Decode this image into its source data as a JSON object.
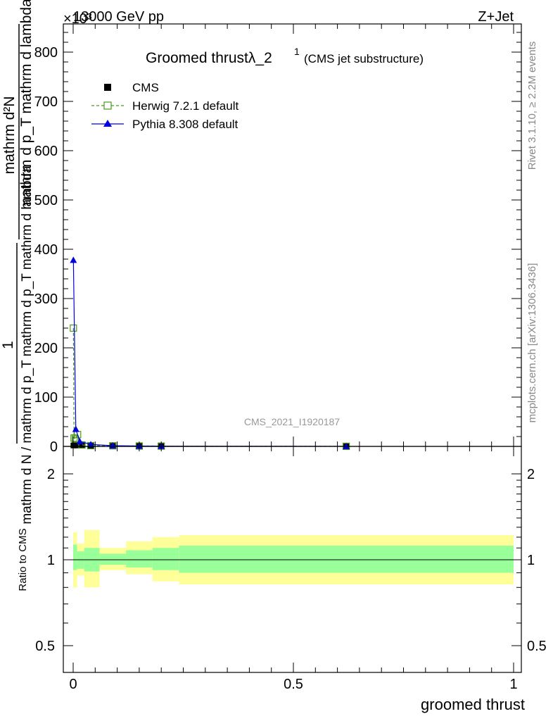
{
  "header": {
    "energy_label": "13000 GeV pp",
    "process_label": "Z+Jet",
    "exponent_label": "×10³"
  },
  "side_labels": {
    "rivet": "Rivet 3.1.10, ≥ 2.2M events",
    "mcplots": "mcplots.cern.ch [arXiv:1306.3436]"
  },
  "chart_data": [
    {
      "type": "line",
      "title": "Groomed thrustλ_2¹",
      "title_main": "Groomed thrustλ_2",
      "title_sup": "1",
      "subtitle": "(CMS jet substructure)",
      "ylabel_numerator": "mathrm d²N",
      "ylabel_fraction_num": "1",
      "ylabel_fraction_den": "mathrm d N / mathrm d p_T mathrm d p_T mathrm d lambda",
      "ylabel_lines": [
        "mathrm d²N",
        "mathrm d p_T mathrm d lambda",
        "mathrm d N / mathrm d p_T",
        "mathrm d p_T mathrm d lambda"
      ],
      "y_multiplier": "×10³",
      "watermark": "CMS_2021_I1920187",
      "xlim": [
        0,
        1
      ],
      "ylim": [
        0,
        860
      ],
      "yticks": [
        0,
        100,
        200,
        300,
        400,
        500,
        600,
        700,
        800
      ],
      "ytick_labels": [
        "0",
        "100",
        "200",
        "300",
        "400",
        "500",
        "600",
        "700",
        "800"
      ],
      "legend_position": "top-left",
      "grid": false,
      "series": [
        {
          "name": "CMS",
          "color": "#000000",
          "marker": "filled-square",
          "x": [
            0.0005,
            0.002,
            0.005,
            0.01,
            0.02,
            0.04,
            0.09,
            0.15,
            0.2,
            0.62
          ],
          "y": [
            2,
            2,
            2,
            2,
            1.5,
            1.2,
            1,
            0.8,
            0.6,
            0.2
          ]
        },
        {
          "name": "Herwig 7.2.1 default",
          "color": "#4a9a1e",
          "marker": "open-square",
          "style": "dashed",
          "x": [
            0.0005,
            0.002,
            0.005,
            0.01,
            0.02,
            0.04,
            0.09,
            0.15,
            0.2,
            0.62
          ],
          "y": [
            240,
            17,
            15,
            24,
            3,
            1.5,
            1.2,
            0.8,
            0.6,
            0.2
          ]
        },
        {
          "name": "Pythia 8.308 default",
          "color": "#0000dd",
          "marker": "filled-triangle",
          "style": "solid",
          "x": [
            0.0005,
            0.006,
            0.015,
            0.04,
            0.09,
            0.15,
            0.2,
            0.62
          ],
          "y": [
            378,
            35,
            10,
            4,
            1.5,
            0.8,
            0.5,
            0.1
          ]
        }
      ]
    },
    {
      "type": "area",
      "ylabel": "Ratio to CMS",
      "xlabel": "groomed thrust",
      "xlim": [
        0,
        1
      ],
      "ylim": [
        0.4,
        2.4
      ],
      "log_y": true,
      "xticks": [
        0,
        0.5,
        1
      ],
      "xtick_labels": [
        "0",
        "0.5",
        "1"
      ],
      "yticks": [
        0.5,
        1,
        2
      ],
      "ytick_labels": [
        "0.5",
        "1",
        "2"
      ],
      "inner_band_color": "#99ff99",
      "outer_band_color": "#ffff99",
      "bins": [
        {
          "x0": 0.0,
          "x1": 0.009,
          "inner": [
            0.92,
            1.13
          ],
          "outer": [
            0.8,
            1.25
          ]
        },
        {
          "x0": 0.009,
          "x1": 0.025,
          "inner": [
            0.93,
            1.07
          ],
          "outer": [
            0.88,
            1.14
          ]
        },
        {
          "x0": 0.025,
          "x1": 0.06,
          "inner": [
            0.91,
            1.1
          ],
          "outer": [
            0.8,
            1.27
          ]
        },
        {
          "x0": 0.06,
          "x1": 0.12,
          "inner": [
            0.96,
            1.05
          ],
          "outer": [
            0.92,
            1.1
          ]
        },
        {
          "x0": 0.12,
          "x1": 0.18,
          "inner": [
            0.94,
            1.08
          ],
          "outer": [
            0.89,
            1.16
          ]
        },
        {
          "x0": 0.18,
          "x1": 0.24,
          "inner": [
            0.92,
            1.1
          ],
          "outer": [
            0.84,
            1.2
          ]
        },
        {
          "x0": 0.24,
          "x1": 1.0,
          "inner": [
            0.9,
            1.12
          ],
          "outer": [
            0.82,
            1.22
          ]
        }
      ]
    }
  ]
}
